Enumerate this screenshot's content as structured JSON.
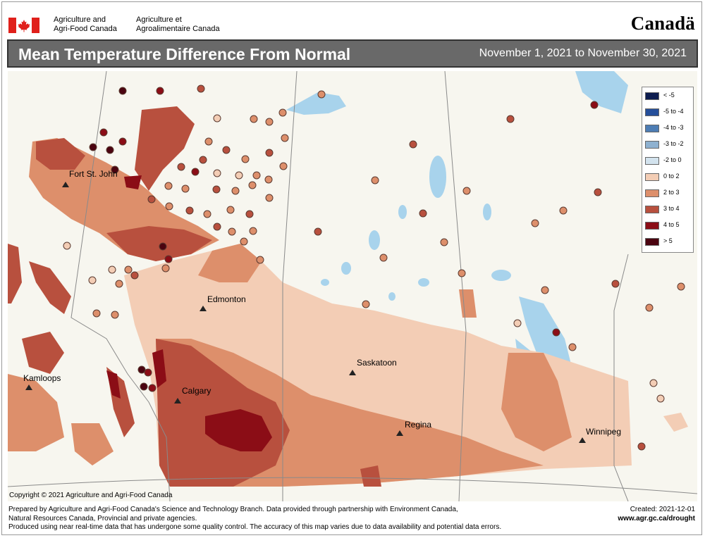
{
  "header": {
    "dept_en_line1": "Agriculture and",
    "dept_en_line2": "Agri-Food Canada",
    "dept_fr_line1": "Agriculture et",
    "dept_fr_line2": "Agroalimentaire Canada",
    "wordmark": "Canadä"
  },
  "titlebar": {
    "title": "Mean Temperature Difference From Normal",
    "period": "November 1, 2021 to November 30, 2021"
  },
  "legend": {
    "items": [
      {
        "label": "< -5",
        "color": "#0d1c4f"
      },
      {
        "label": "-5 to -4",
        "color": "#254f9a"
      },
      {
        "label": "-4 to -3",
        "color": "#4d7db4"
      },
      {
        "label": "-3 to -2",
        "color": "#8eb1d0"
      },
      {
        "label": "-2 to 0",
        "color": "#d3e3ee"
      },
      {
        "label": "0 to 2",
        "color": "#f3cdb5"
      },
      {
        "label": "2 to 3",
        "color": "#dd8f6b"
      },
      {
        "label": "3 to 4",
        "color": "#b8503e"
      },
      {
        "label": "4 to 5",
        "color": "#8b0d16"
      },
      {
        "label": "> 5",
        "color": "#4b0410"
      }
    ]
  },
  "cities": {
    "fort_st_john": "Fort St. John",
    "edmonton": "Edmonton",
    "kamloops": "Kamloops",
    "calgary": "Calgary",
    "saskatoon": "Saskatoon",
    "regina": "Regina",
    "winnipeg": "Winnipeg"
  },
  "copyright": "Copyright © 2021 Agriculture and Agri-Food Canada",
  "footer": {
    "line1": "Prepared by Agriculture and Agri-Food Canada's Science and Technology Branch. Data provided through partnership with Environment Canada,",
    "line2": "Natural Resources Canada, Provincial and private agencies.",
    "line3": "Produced using near real-time data that has undergone some quality control. The accuracy of this map varies due to data availability and potential data errors.",
    "created": "Created: 2021-12-01",
    "url": "www.agr.gc.ca/drought"
  }
}
